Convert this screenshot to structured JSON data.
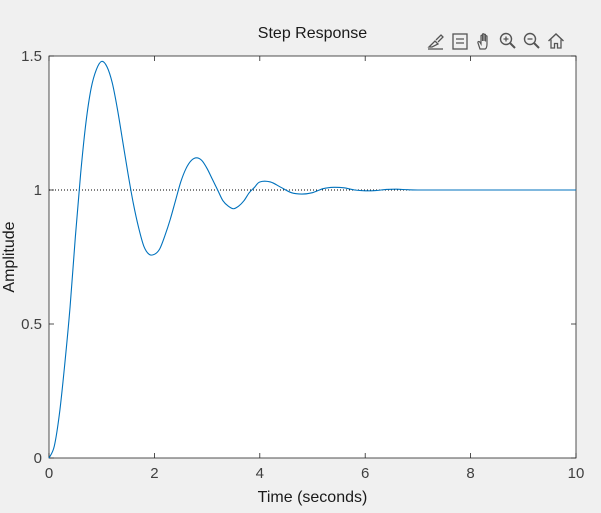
{
  "toolbar": {
    "icons": [
      "brush-icon",
      "legend-icon",
      "pan-hand-icon",
      "zoom-in-icon",
      "zoom-out-icon",
      "home-icon"
    ]
  },
  "colors": {
    "background": "#f0f0f0",
    "axes_face": "#ffffff",
    "axis_color": "#262626",
    "line": "#0072bd",
    "reference": "#000000"
  },
  "chart_data": {
    "type": "line",
    "title": "Step Response",
    "xlabel": "Time (seconds)",
    "ylabel": "Amplitude",
    "xlim": [
      0,
      10
    ],
    "ylim": [
      0,
      1.5
    ],
    "xticks": [
      0,
      2,
      4,
      6,
      8,
      10
    ],
    "xtick_labels": [
      "0",
      "2",
      "4",
      "6",
      "8",
      "10"
    ],
    "yticks": [
      0,
      0.5,
      1,
      1.5
    ],
    "ytick_labels": [
      "0",
      "0.5",
      "1",
      "1.5"
    ],
    "grid": false,
    "reference_line": {
      "y": 1,
      "style": "dotted"
    },
    "series": [
      {
        "x": [
          0,
          0.1,
          0.2,
          0.3,
          0.4,
          0.5,
          0.6,
          0.7,
          0.8,
          0.9,
          1.0,
          1.1,
          1.2,
          1.3,
          1.4,
          1.5,
          1.6,
          1.7,
          1.8,
          1.9,
          2.0,
          2.1,
          2.2,
          2.3,
          2.4,
          2.5,
          2.6,
          2.7,
          2.8,
          2.9,
          3.0,
          3.1,
          3.2,
          3.3,
          3.4,
          3.5,
          3.6,
          3.7,
          3.8,
          3.9,
          4.0,
          4.2,
          4.4,
          4.6,
          4.8,
          5.0,
          5.2,
          5.4,
          5.6,
          5.8,
          6.0,
          6.2,
          6.4,
          6.6,
          6.8,
          7.0,
          7.5,
          8.0,
          8.5,
          9.0,
          9.5,
          10.0
        ],
        "y": [
          0,
          0.044,
          0.168,
          0.352,
          0.564,
          0.825,
          1.06,
          1.25,
          1.38,
          1.45,
          1.48,
          1.46,
          1.4,
          1.3,
          1.18,
          1.06,
          0.95,
          0.86,
          0.79,
          0.76,
          0.76,
          0.78,
          0.83,
          0.89,
          0.96,
          1.03,
          1.08,
          1.11,
          1.12,
          1.11,
          1.08,
          1.04,
          1.0,
          0.96,
          0.94,
          0.93,
          0.94,
          0.96,
          0.99,
          1.01,
          1.03,
          1.03,
          1.01,
          0.99,
          0.985,
          0.99,
          1.005,
          1.01,
          1.008,
          1.0,
          0.997,
          0.998,
          1.002,
          1.003,
          1.001,
          1.0,
          1.0,
          1.0,
          1.0,
          1.0,
          1.0,
          1.0
        ]
      }
    ]
  }
}
